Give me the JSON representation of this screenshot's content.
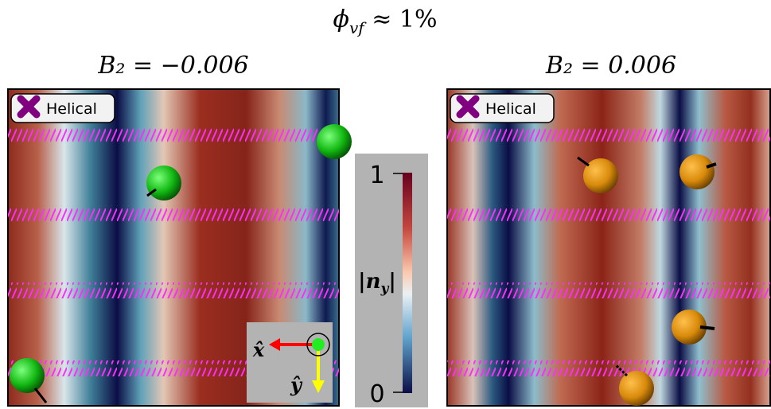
{
  "title": {
    "symbol": "ϕ",
    "subscript": "vf",
    "rest": " ≈ 1%"
  },
  "panels": [
    {
      "heading": "B₂ = −0.006",
      "legend": "Helical"
    },
    {
      "heading": "B₂ = 0.006",
      "legend": "Helical"
    }
  ],
  "colorbar": {
    "top_tick": "1",
    "bottom_tick": "0",
    "label_open": "|n",
    "label_sub": "y",
    "label_close": "|"
  },
  "axes_inset": {
    "x_label": "x̂",
    "y_label": "ŷ"
  }
}
